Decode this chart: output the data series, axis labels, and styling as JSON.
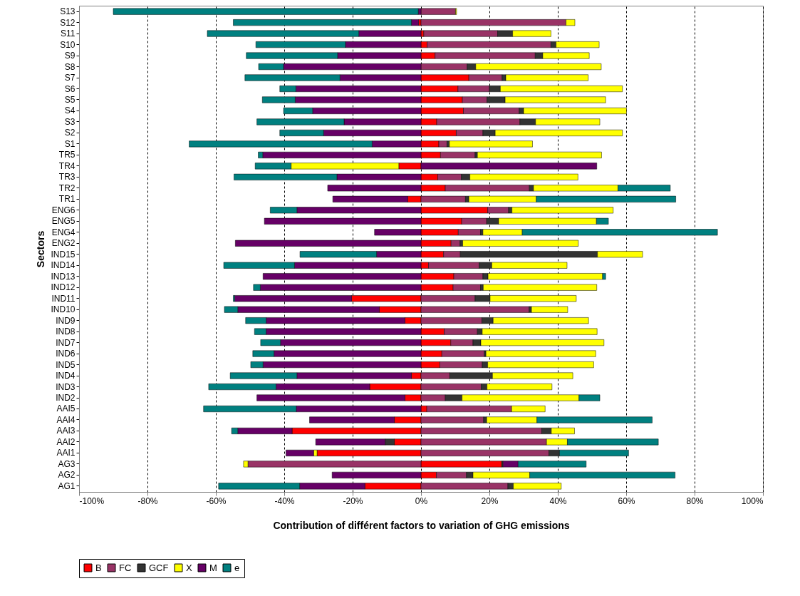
{
  "chart_data": {
    "type": "bar",
    "orientation": "horizontal",
    "stacked": true,
    "xlabel": "Contribution of différent factors to  variation of GHG emissions",
    "ylabel": "Sectors",
    "categories": [
      "S13",
      "S12",
      "S11",
      "S10",
      "S9",
      "S8",
      "S7",
      "S6",
      "S5",
      "S4",
      "S3",
      "S2",
      "S1",
      "TR5",
      "TR4",
      "TR3",
      "TR2",
      "TR1",
      "ENG6",
      "ENG5",
      "ENG4",
      "ENG2",
      "IND15",
      "IND14",
      "IND13",
      "IND12",
      "IND11",
      "IND10",
      "IND9",
      "IND8",
      "IND7",
      "IND6",
      "IND5",
      "IND4",
      "IND3",
      "IND2",
      "AAI5",
      "AAI4",
      "AAI3",
      "AAI2",
      "AAI1",
      "AG3",
      "AG2",
      "AG1"
    ],
    "series": [
      {
        "name": "B",
        "color": "#ff0000",
        "values": [
          null,
          -0.7,
          0.8,
          1.8,
          4.1,
          null,
          14.0,
          10.8,
          12.1,
          12.4,
          4.6,
          10.3,
          5.2,
          5.7,
          -6.5,
          4.9,
          7.1,
          -3.9,
          19.5,
          11.9,
          10.9,
          8.8,
          6.6,
          2.2,
          9.6,
          9.4,
          -20.3,
          -12.2,
          -4.7,
          6.8,
          8.7,
          6.1,
          5.5,
          -2.8,
          -15.0,
          -4.7,
          1.7,
          -7.8,
          -37.7,
          -7.8,
          -30.4,
          23.6,
          4.5,
          -16.4
        ]
      },
      {
        "name": "FC",
        "color": "#993366",
        "values": [
          10.1,
          42.4,
          21.6,
          36.2,
          29.3,
          13.5,
          9.7,
          9.2,
          7.2,
          16.3,
          24.3,
          7.8,
          2.4,
          10.1,
          null,
          6.9,
          24.6,
          13.0,
          6.1,
          7.3,
          6.5,
          2.6,
          4.9,
          14.8,
          8.5,
          8.0,
          15.8,
          31.6,
          17.8,
          9.7,
          6.5,
          12.4,
          12.4,
          8.4,
          17.6,
          7.1,
          24.8,
          18.3,
          35.3,
          36.7,
          37.4,
          -50.6,
          8.8,
          25.4
        ]
      },
      {
        "name": "GCF",
        "color": "#333333",
        "values": [
          null,
          null,
          4.4,
          1.5,
          2.2,
          2.5,
          1.1,
          3.2,
          5.3,
          1.3,
          4.6,
          3.6,
          0.7,
          0.7,
          null,
          2.5,
          1.2,
          1.0,
          1.0,
          3.5,
          0.7,
          0.8,
          40.1,
          3.7,
          1.5,
          0.8,
          4.4,
          0.7,
          3.3,
          1.4,
          2.3,
          0.5,
          1.6,
          12.5,
          1.7,
          4.9,
          null,
          0.9,
          2.8,
          -2.7,
          3.1,
          0.4,
          1.9,
          1.6
        ]
      },
      {
        "name": "X",
        "color": "#ffff00",
        "values": [
          0.3,
          2.6,
          11.2,
          12.6,
          13.6,
          36.7,
          24.1,
          35.7,
          29.4,
          30.1,
          18.8,
          37.2,
          24.3,
          36.3,
          -31.5,
          31.6,
          24.7,
          19.7,
          29.6,
          28.6,
          11.5,
          33.8,
          13.2,
          22.0,
          33.5,
          33.2,
          25.2,
          10.6,
          27.9,
          33.6,
          36.0,
          32.1,
          31.0,
          23.5,
          19.0,
          34.2,
          9.8,
          14.7,
          6.8,
          6.1,
          -1.0,
          -1.3,
          16.6,
          14.0
        ]
      },
      {
        "name": "M",
        "color": "#660066",
        "values": [
          -0.8,
          -2.1,
          -18.2,
          -22.1,
          -24.4,
          -40.2,
          -23.7,
          -36.6,
          -36.8,
          -31.7,
          -22.5,
          -28.5,
          -14.3,
          -46.3,
          51.4,
          -24.6,
          -27.3,
          -21.9,
          -36.3,
          -45.8,
          -13.6,
          -54.3,
          -13.0,
          -37.0,
          -46.2,
          -47.0,
          -34.2,
          -41.4,
          -40.6,
          -45.3,
          -41.1,
          -43.0,
          -46.2,
          -33.5,
          -27.4,
          -43.3,
          -36.5,
          -24.8,
          -15.9,
          -20.3,
          -8.1,
          4.4,
          -26.0,
          -19.1
        ]
      },
      {
        "name": "e",
        "color": "#008080",
        "values": [
          -89.2,
          -52.1,
          -44.3,
          -26.2,
          -26.7,
          -7.3,
          -27.8,
          -4.7,
          -9.6,
          -8.5,
          -25.5,
          -12.8,
          -53.5,
          -1.3,
          -10.5,
          -30.1,
          15.3,
          40.8,
          -7.8,
          3.5,
          57.1,
          null,
          -22.4,
          -20.7,
          0.9,
          -2.0,
          -0.4,
          -3.9,
          -6.0,
          -3.4,
          -5.8,
          -6.2,
          -3.6,
          -19.5,
          -19.7,
          6.1,
          -27.1,
          33.7,
          -1.8,
          26.6,
          20.2,
          19.9,
          42.5,
          -23.7
        ]
      }
    ],
    "xlim": [
      -100,
      100
    ],
    "xticks": [
      {
        "value": -100,
        "label": "-100%"
      },
      {
        "value": -80,
        "label": "-80%"
      },
      {
        "value": -60,
        "label": "-60%"
      },
      {
        "value": -40,
        "label": "-40%"
      },
      {
        "value": -20,
        "label": "-20%"
      },
      {
        "value": 0,
        "label": "0%"
      },
      {
        "value": 20,
        "label": "20%"
      },
      {
        "value": 40,
        "label": "40%"
      },
      {
        "value": 60,
        "label": "60%"
      },
      {
        "value": 80,
        "label": "80%"
      },
      {
        "value": 100,
        "label": "100%"
      }
    ],
    "grid": "x",
    "legend": "bottom"
  }
}
